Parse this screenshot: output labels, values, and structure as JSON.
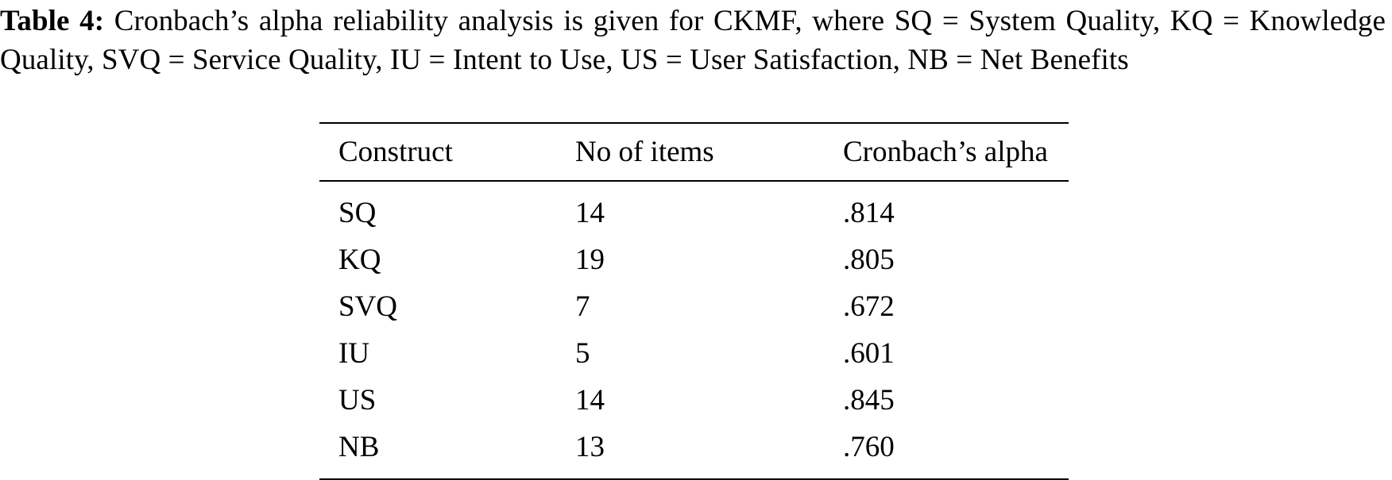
{
  "caption": {
    "label": "Table 4:",
    "text": "Cronbach’s alpha reliability analysis is given for CKMF, where SQ = System Quality, KQ = Knowledge Quality, SVQ = Service Quality, IU = Intent to Use, US = User Satisfaction, NB = Net Benefits"
  },
  "table": {
    "headers": [
      "Construct",
      "No of items",
      "Cronbach’s alpha"
    ],
    "rows": [
      [
        "SQ",
        "14",
        ".814"
      ],
      [
        "KQ",
        "19",
        ".805"
      ],
      [
        "SVQ",
        "7",
        ".672"
      ],
      [
        "IU",
        "5",
        ".601"
      ],
      [
        "US",
        "14",
        ".845"
      ],
      [
        "NB",
        "13",
        ".760"
      ]
    ]
  }
}
